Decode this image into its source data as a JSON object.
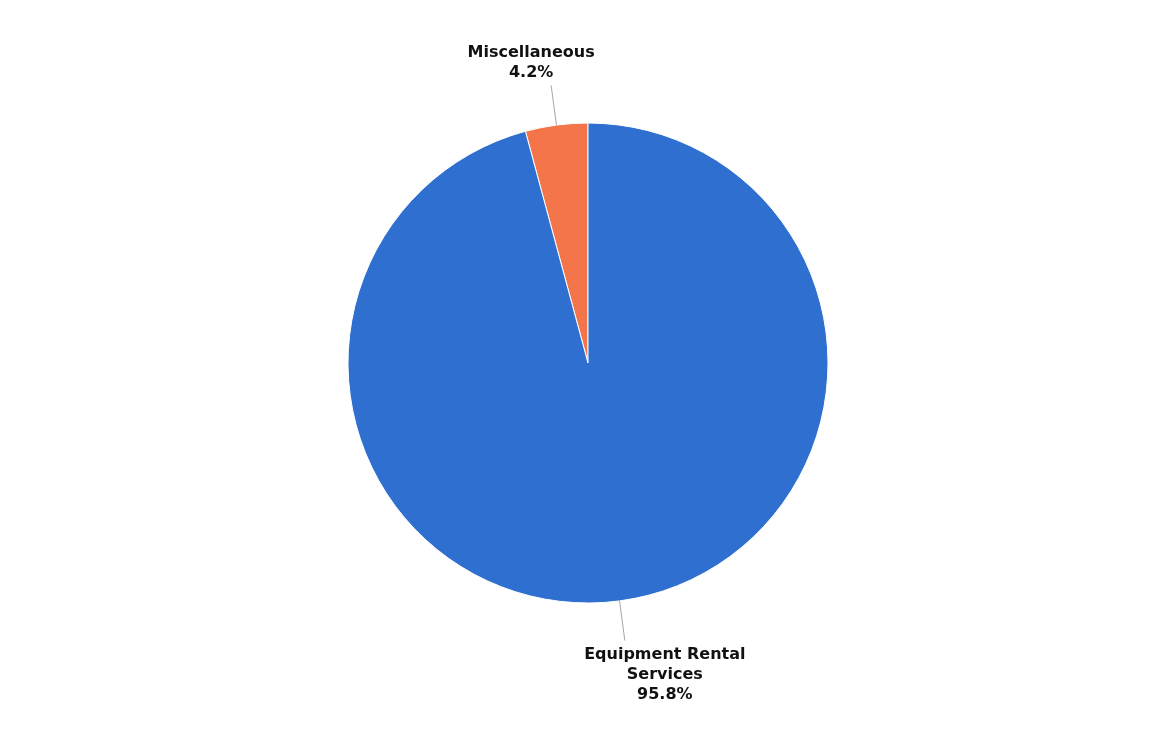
{
  "chart_data": {
    "type": "pie",
    "categories": [
      "Miscellaneous",
      "Equipment Rental Services"
    ],
    "values": [
      4.2,
      95.8
    ],
    "value_labels": [
      "4.2%",
      "95.8%"
    ],
    "colors": [
      "#f4754a",
      "#2e6fcf"
    ],
    "legend": false
  }
}
